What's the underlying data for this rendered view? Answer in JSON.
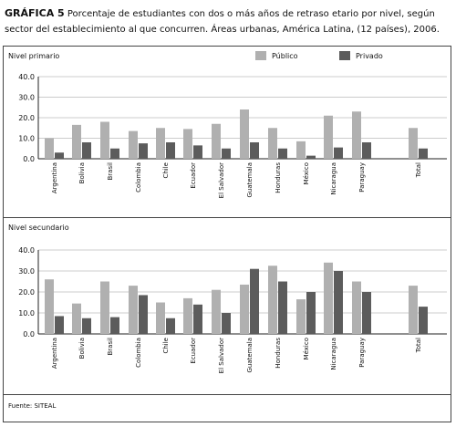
{
  "figure": {
    "title_lead": "GRÁFICA 5",
    "title_rest": " Porcentaje de estudiantes con dos o más años de retraso etario por nivel, según sector del establecimiento al que concurren. Áreas urbanas, América Latina, (12 países), 2006.",
    "source": "Fuente: SITEAL"
  },
  "legend": {
    "publico": "Público",
    "privado": "Privado"
  },
  "colors": {
    "publico": "#b0b0b0",
    "privado": "#5c5c5c"
  },
  "chart_data": [
    {
      "type": "bar",
      "title": "Nivel primario",
      "ylim": [
        0,
        40
      ],
      "yticks": [
        "0.0",
        "10.0",
        "20.0",
        "30.0",
        "40.0"
      ],
      "grid": true,
      "categories": [
        "Argentina",
        "Bolivia",
        "Brasil",
        "Colombia",
        "Chile",
        "Ecuador",
        "El Salvador",
        "Guatemala",
        "Honduras",
        "México",
        "Nicaragua",
        "Paraguay",
        "Total"
      ],
      "series": [
        {
          "name": "Público",
          "values": [
            10,
            16.5,
            18,
            13.5,
            15,
            14.5,
            17,
            24,
            15,
            8.5,
            21,
            23,
            15
          ]
        },
        {
          "name": "Privado",
          "values": [
            3,
            8,
            5,
            7.5,
            8,
            6.5,
            5,
            8,
            5,
            1.5,
            5.5,
            8,
            5
          ]
        }
      ]
    },
    {
      "type": "bar",
      "title": "Nivel secundario",
      "ylim": [
        0,
        40
      ],
      "yticks": [
        "0.0",
        "10.0",
        "20.0",
        "30.0",
        "40.0"
      ],
      "grid": true,
      "categories": [
        "Argentina",
        "Bolivia",
        "Brasil",
        "Colombia",
        "Chile",
        "Ecuador",
        "El Salvador",
        "Guatemala",
        "Honduras",
        "México",
        "Nicaragua",
        "Paraguay",
        "Total"
      ],
      "series": [
        {
          "name": "Público",
          "values": [
            26,
            14.5,
            25,
            23,
            15,
            17,
            21,
            23.5,
            32.5,
            16.5,
            34,
            25,
            23
          ]
        },
        {
          "name": "Privado",
          "values": [
            8.5,
            7.5,
            8,
            18.5,
            7.5,
            14,
            10,
            31,
            25,
            20,
            30,
            20,
            13
          ]
        }
      ]
    }
  ]
}
